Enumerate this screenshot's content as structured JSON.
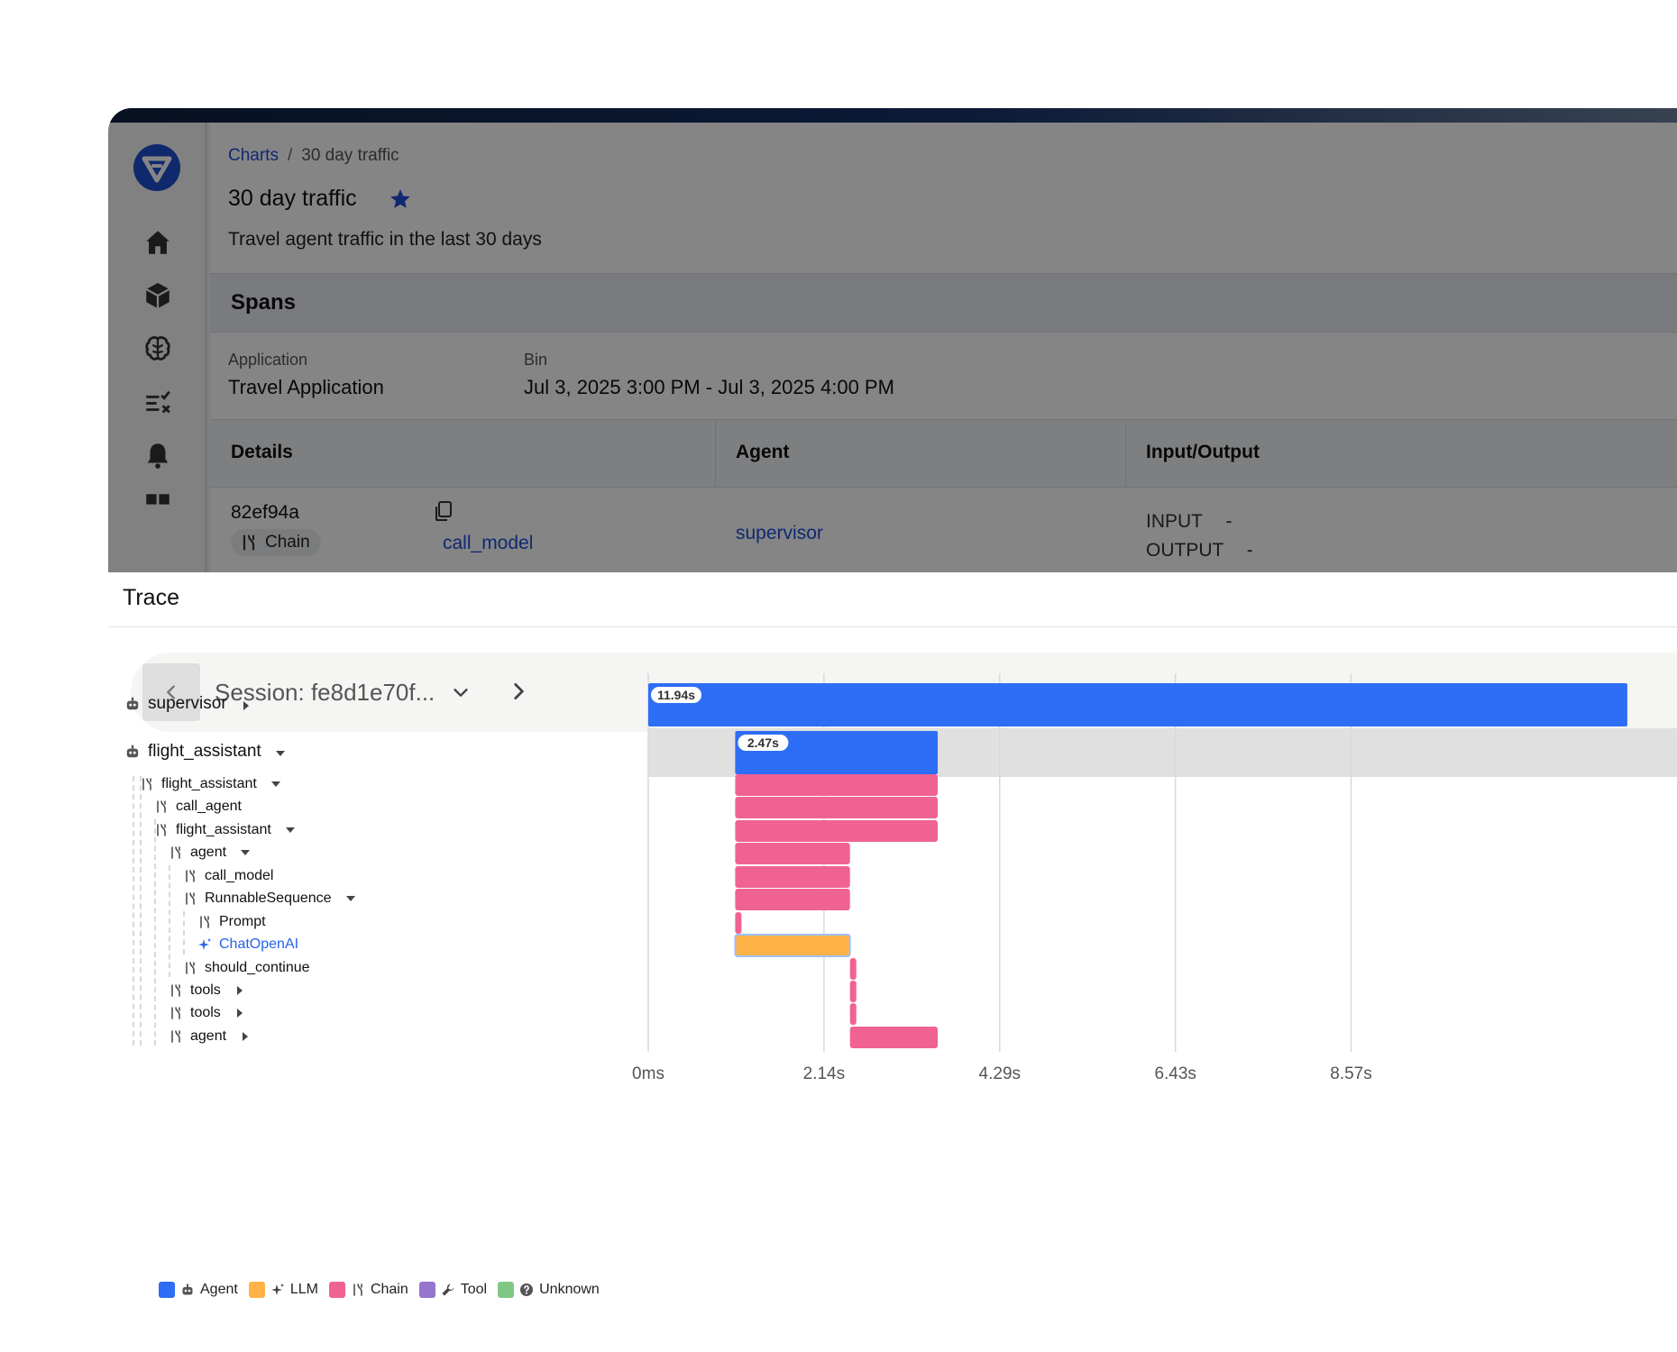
{
  "app": {
    "breadcrumb": {
      "parent": "Charts",
      "separator": "/",
      "current": "30 day traffic"
    },
    "title": "30 day traffic",
    "subtitle": "Travel agent traffic in the last 30 days",
    "spans": {
      "title": "Spans",
      "application_label": "Application",
      "application_value": "Travel Application",
      "bin_label": "Bin",
      "bin_value": "Jul 3, 2025 3:00 PM - Jul 3, 2025 4:00 PM",
      "columns": [
        "Details",
        "Agent",
        "Input/Output"
      ],
      "row": {
        "id": "82ef94a",
        "kind": "Chain",
        "name": "call_model",
        "agent": "supervisor",
        "input_label": "INPUT",
        "input_value": "-",
        "output_label": "OUTPUT",
        "output_value": "-"
      }
    }
  },
  "trace": {
    "title": "Trace",
    "session_label": "Session: fe8d1e70f...",
    "tree": [
      {
        "label": "supervisor",
        "kind": "agent",
        "toggle": "collapsed"
      },
      {
        "label": "flight_assistant",
        "kind": "agent",
        "toggle": "expanded"
      },
      {
        "label": "flight_assistant",
        "kind": "chain",
        "toggle": "expanded"
      },
      {
        "label": "call_agent",
        "kind": "chain",
        "toggle": ""
      },
      {
        "label": "flight_assistant",
        "kind": "chain",
        "toggle": "expanded"
      },
      {
        "label": "agent",
        "kind": "chain",
        "toggle": "expanded"
      },
      {
        "label": "call_model",
        "kind": "chain",
        "toggle": ""
      },
      {
        "label": "RunnableSequence",
        "kind": "chain",
        "toggle": "expanded"
      },
      {
        "label": "Prompt",
        "kind": "chain",
        "toggle": ""
      },
      {
        "label": "ChatOpenAI",
        "kind": "llm",
        "toggle": ""
      },
      {
        "label": "should_continue",
        "kind": "chain",
        "toggle": ""
      },
      {
        "label": "tools",
        "kind": "chain",
        "toggle": "collapsed"
      },
      {
        "label": "tools",
        "kind": "chain",
        "toggle": "collapsed"
      },
      {
        "label": "agent",
        "kind": "chain",
        "toggle": "collapsed"
      }
    ],
    "chart_data": {
      "type": "bar",
      "title": "",
      "xlabel": "",
      "ylabel": "",
      "x_unit": "s",
      "x_ticks": [
        0,
        2.143,
        4.286,
        6.429,
        8.571
      ],
      "x_tick_labels": [
        "0ms",
        "2.14s",
        "4.29s",
        "6.43s",
        "8.57s"
      ],
      "xlim": [
        0,
        11.94
      ],
      "spans": [
        {
          "name": "supervisor",
          "kind": "agent",
          "start": 0,
          "end": 11.94,
          "label": "11.94s"
        },
        {
          "name": "flight_assistant",
          "kind": "agent",
          "start": 1.06,
          "end": 3.53,
          "label": "2.47s",
          "highlighted": true
        },
        {
          "name": "flight_assistant",
          "kind": "chain",
          "start": 1.06,
          "end": 3.53
        },
        {
          "name": "call_agent",
          "kind": "chain",
          "start": 1.06,
          "end": 3.53
        },
        {
          "name": "flight_assistant",
          "kind": "chain",
          "start": 1.06,
          "end": 3.53
        },
        {
          "name": "agent",
          "kind": "chain",
          "start": 1.06,
          "end": 2.46
        },
        {
          "name": "call_model",
          "kind": "chain",
          "start": 1.06,
          "end": 2.46
        },
        {
          "name": "RunnableSequence",
          "kind": "chain",
          "start": 1.06,
          "end": 2.46
        },
        {
          "name": "Prompt",
          "kind": "chain",
          "start": 1.06,
          "end": 1.13
        },
        {
          "name": "ChatOpenAI",
          "kind": "llm",
          "start": 1.06,
          "end": 2.46,
          "selected": true
        },
        {
          "name": "should_continue",
          "kind": "chain",
          "start": 2.46,
          "end": 2.53
        },
        {
          "name": "tools",
          "kind": "chain",
          "start": 2.46,
          "end": 2.53
        },
        {
          "name": "tools",
          "kind": "chain",
          "start": 2.46,
          "end": 2.53
        },
        {
          "name": "agent",
          "kind": "chain",
          "start": 2.46,
          "end": 3.53
        }
      ]
    },
    "legend": [
      {
        "label": "Agent",
        "color": "#2e6df6",
        "icon": "robot-icon"
      },
      {
        "label": "LLM",
        "color": "#ffb347",
        "icon": "sparkle-icon"
      },
      {
        "label": "Chain",
        "color": "#f06292",
        "icon": "chain-icon"
      },
      {
        "label": "Tool",
        "color": "#9575cd",
        "icon": "wrench-icon"
      },
      {
        "label": "Unknown",
        "color": "#81c784",
        "icon": "question-icon"
      }
    ]
  },
  "colors": {
    "agent": "#2e6df6",
    "llm": "#ffb347",
    "chain": "#f06292",
    "tool": "#9575cd",
    "unknown": "#81c784",
    "link": "#1d4ed8",
    "highlight_row": "#e0e0e0"
  }
}
